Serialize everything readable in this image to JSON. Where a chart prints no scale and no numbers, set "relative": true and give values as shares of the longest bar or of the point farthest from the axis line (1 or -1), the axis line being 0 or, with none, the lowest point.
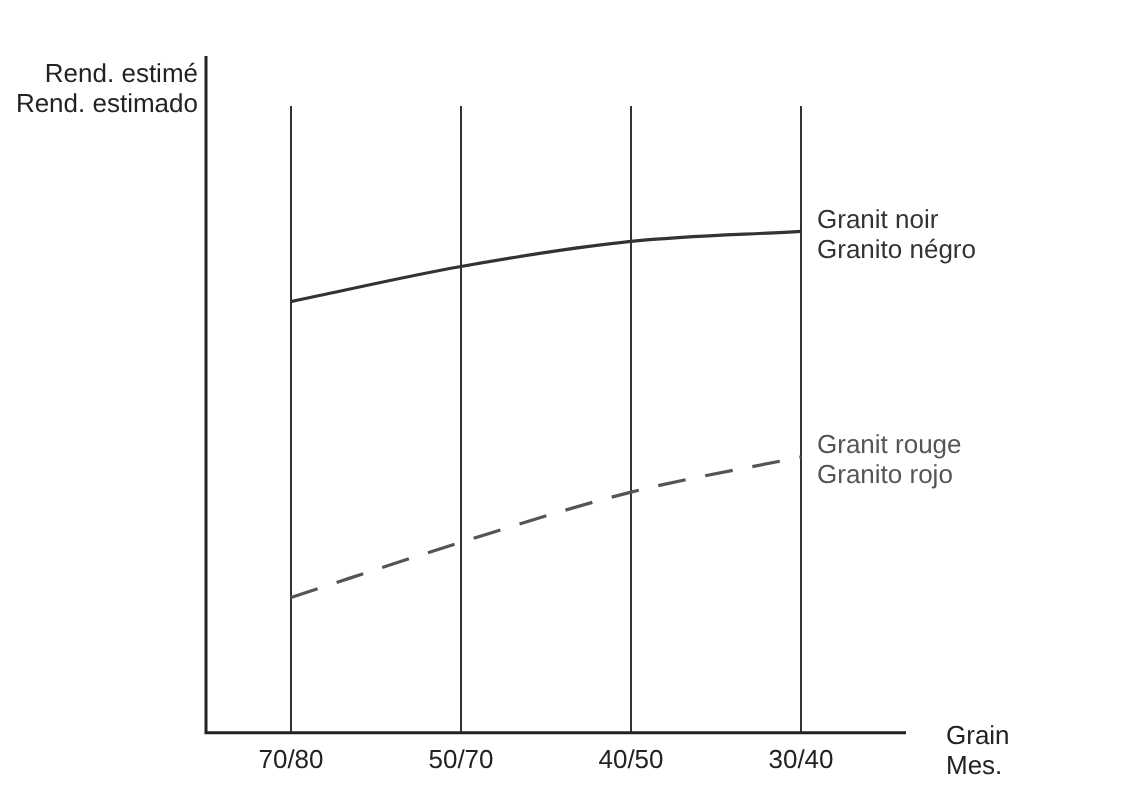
{
  "chart_data": {
    "type": "line",
    "relative": true,
    "ylabel": "Rend. estimé\nRend. estimado",
    "xlabel": "Grain\nMes.",
    "categories": [
      "70/80",
      "50/70",
      "40/50",
      "30/40"
    ],
    "series": [
      {
        "name": "Granit noir\nGranito négro",
        "color": "#333333",
        "values": [
          0.86,
          0.93,
          0.98,
          1
        ],
        "line_style": "solid"
      },
      {
        "name": "Granit rouge\nGranito rojo",
        "color": "#555555",
        "values": [
          0.27,
          0.38,
          0.48,
          0.55
        ],
        "line_style": "dashed"
      }
    ],
    "grid": "x",
    "legend": false,
    "marker": "none"
  }
}
